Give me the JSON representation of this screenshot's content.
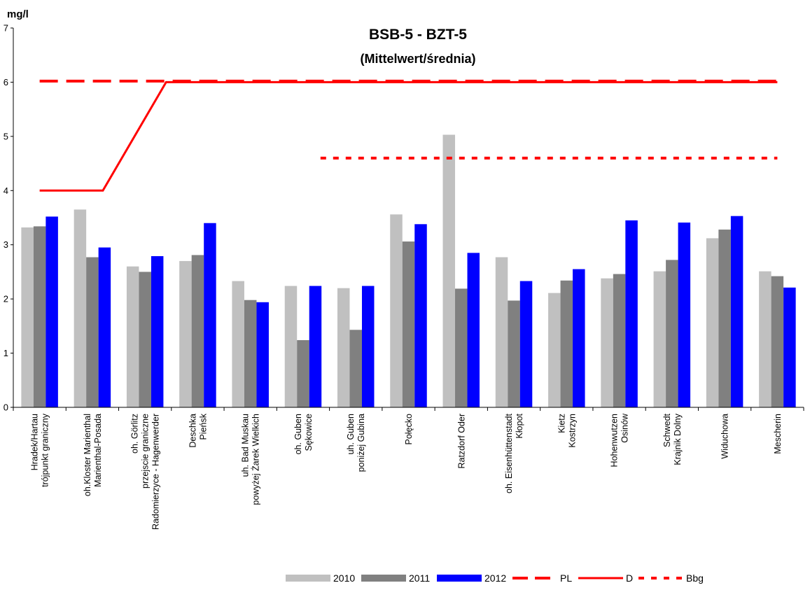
{
  "chart_data": {
    "type": "bar",
    "title": "BSB-5 - BZT-5",
    "subtitle": "(Mittelwert/średnia)",
    "ylabel": "mg/l",
    "ylim": [
      0,
      7
    ],
    "yticks": [
      "0",
      "1",
      "2",
      "3",
      "4",
      "5",
      "6",
      "7"
    ],
    "categories": [
      [
        "Hradek/Hartau",
        "trójpunkt graniczny"
      ],
      [
        "oh.Kloster Marienthal",
        "Marienthal-Posada"
      ],
      [
        "oh. Görlitz",
        "przejscie graniczne",
        "Radomierzyce - Hagenwerder"
      ],
      [
        "Deschka",
        "Pieńsk"
      ],
      [
        "uh. Bad Muskau",
        "powyżej Żarek Wielkich"
      ],
      [
        "oh. Guben",
        "Sękowice"
      ],
      [
        "uh. Guben",
        "poniżej Gubina"
      ],
      [
        "Połęcko"
      ],
      [
        "Ratzdorf Oder"
      ],
      [
        "oh. Eisenhüttenstadt",
        "Kłopot"
      ],
      [
        "Kietz",
        "Kostrzyn"
      ],
      [
        "Hohenwutzen",
        "Osinów"
      ],
      [
        "Schwedt",
        "Krajnik Dolny"
      ],
      [
        "Widuchowa"
      ],
      [
        "Mescherin"
      ]
    ],
    "series": [
      {
        "name": "2010",
        "color": "#c0c0c0",
        "values": [
          3.32,
          3.65,
          2.6,
          2.7,
          2.33,
          2.24,
          2.2,
          3.56,
          5.03,
          2.77,
          2.11,
          2.38,
          2.51,
          3.12,
          2.51
        ]
      },
      {
        "name": "2011",
        "color": "#808080",
        "values": [
          3.34,
          2.77,
          2.5,
          2.81,
          1.98,
          1.24,
          1.43,
          3.06,
          2.19,
          1.97,
          2.34,
          2.46,
          2.72,
          3.28,
          2.42
        ]
      },
      {
        "name": "2012",
        "color": "#0000ff",
        "values": [
          3.52,
          2.95,
          2.79,
          3.4,
          1.94,
          2.24,
          2.24,
          3.38,
          2.85,
          2.33,
          2.55,
          3.45,
          3.41,
          3.53,
          2.21
        ]
      }
    ],
    "lines": [
      {
        "name": "PL",
        "color": "#ff0000",
        "style": "dashed",
        "points": [
          [
            0,
            6.02
          ],
          [
            14,
            6.02
          ]
        ]
      },
      {
        "name": "D",
        "color": "#ff0000",
        "style": "solid",
        "points": [
          [
            0,
            4.0
          ],
          [
            1.2,
            4.0
          ],
          [
            2.4,
            6.0
          ],
          [
            14,
            6.0
          ]
        ]
      },
      {
        "name": "Bbg",
        "color": "#ff0000",
        "style": "dotted",
        "points": [
          [
            5.33,
            4.6
          ],
          [
            14,
            4.6
          ]
        ]
      }
    ],
    "legend_position": "bottom-right",
    "grid": false
  }
}
